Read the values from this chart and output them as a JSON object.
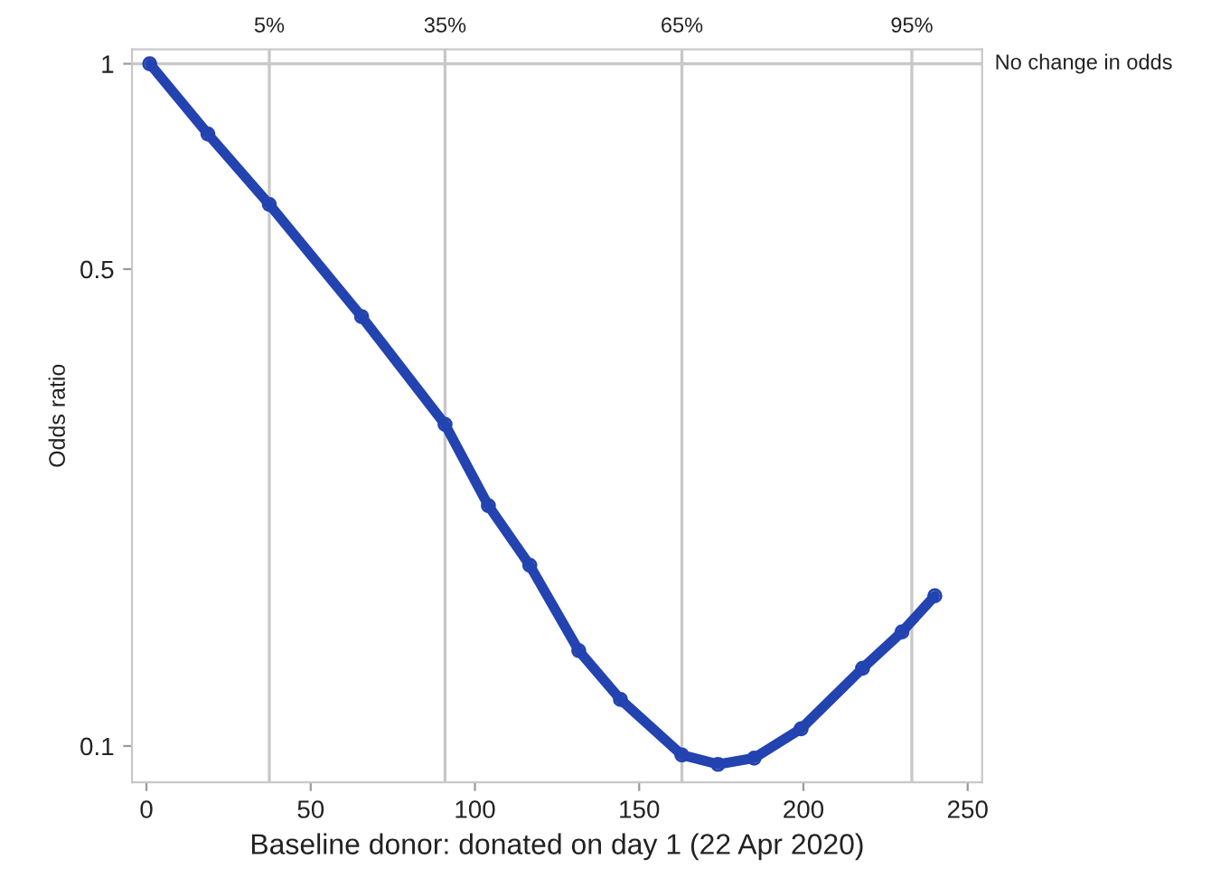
{
  "chart_data": {
    "type": "line",
    "xlabel": "Baseline donor: donated on day 1 (22 Apr 2020)",
    "ylabel": "Odds ratio",
    "log": "y",
    "xlim": [
      -4.4,
      254.4
    ],
    "xticks": [
      0,
      50,
      100,
      150,
      200,
      250
    ],
    "ylim": [
      0.0885,
      1.05
    ],
    "yticks": [
      0.1,
      0.5,
      1
    ],
    "marker": "circle",
    "line_style": "solid",
    "grid": false,
    "ref_lines": [
      {
        "axis": "y",
        "value": 1,
        "label": "No change in odds",
        "color": "#c8c8c8"
      },
      {
        "axis": "x",
        "value": 37.4,
        "color": "#c8c8c8"
      },
      {
        "axis": "x",
        "value": 90.9,
        "color": "#c8c8c8"
      },
      {
        "axis": "x",
        "value": 163,
        "color": "#c8c8c8"
      },
      {
        "axis": "x",
        "value": 233,
        "color": "#c8c8c8"
      }
    ],
    "annotations": [
      "5%",
      "35%",
      "65%",
      "95%"
    ],
    "series": [
      {
        "color": "#2343b0",
        "x": [
          1,
          18.7,
          37.4,
          65.5,
          90.9,
          104.1,
          116.7,
          131.6,
          144.3,
          163,
          174,
          185,
          199.3,
          218,
          230,
          240
        ],
        "values": [
          1,
          0.789,
          0.622,
          0.426,
          0.296,
          0.225,
          0.184,
          0.138,
          0.117,
          0.097,
          0.094,
          0.096,
          0.106,
          0.13,
          0.147,
          0.166
        ]
      }
    ]
  }
}
